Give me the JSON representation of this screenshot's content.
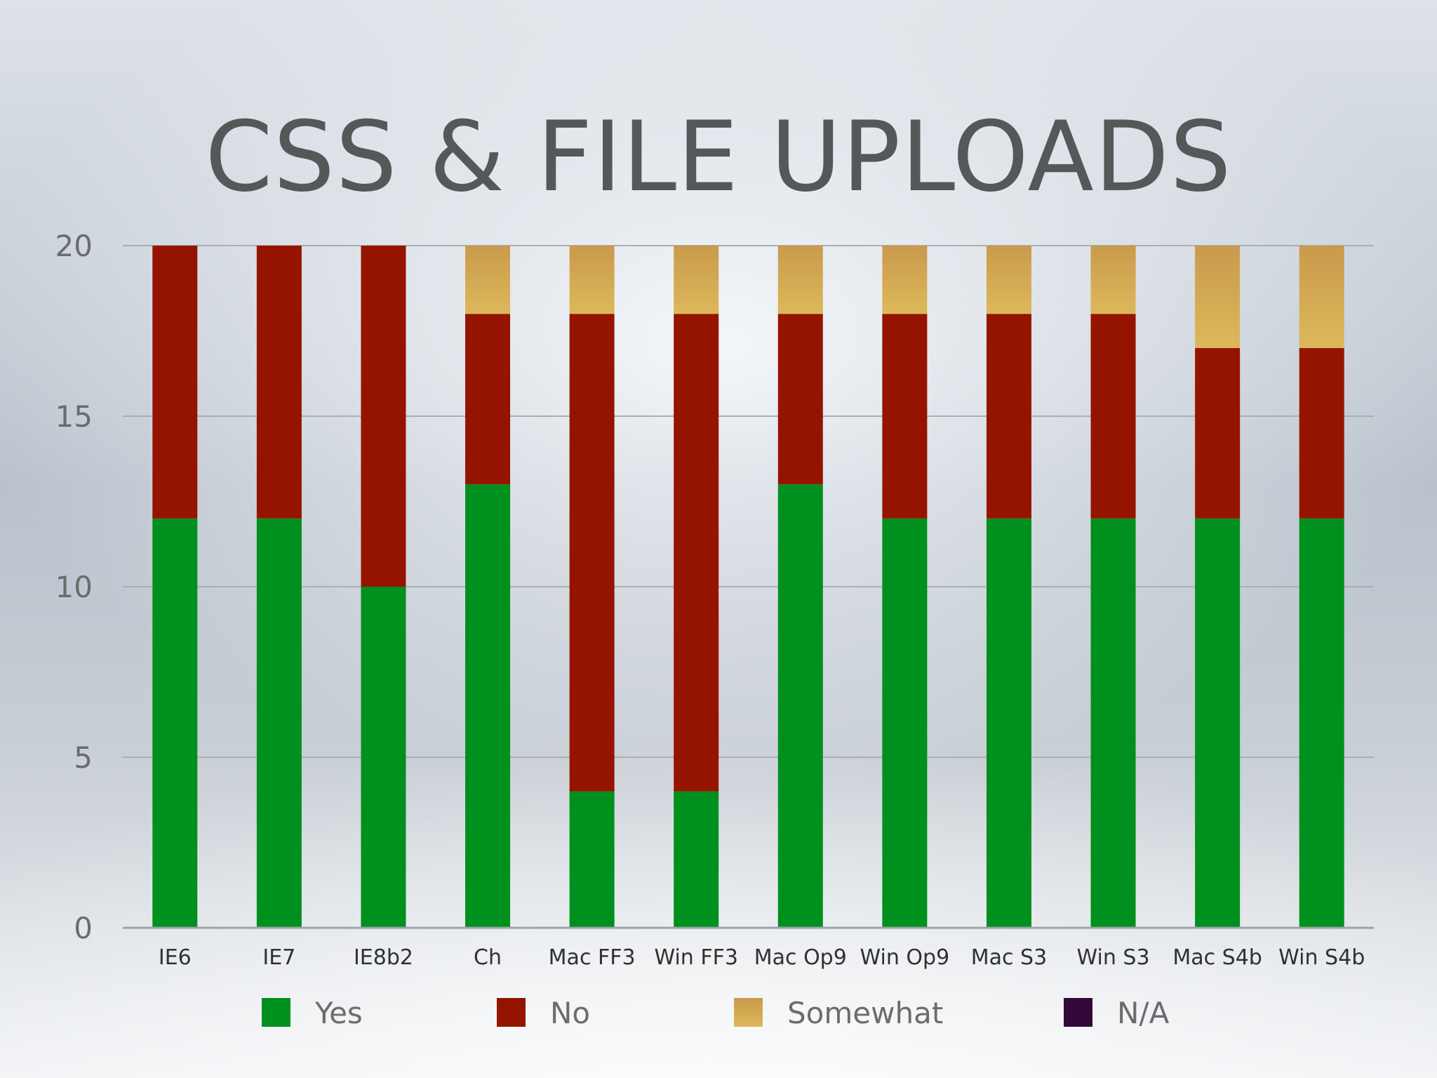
{
  "slide": {
    "title": "CSS & FILE UPLOADS"
  },
  "chart_data": {
    "type": "bar",
    "stacked": true,
    "title": "CSS & FILE UPLOADS",
    "xlabel": "",
    "ylabel": "",
    "ylim": [
      0,
      20
    ],
    "yticks": [
      0,
      5,
      10,
      15,
      20
    ],
    "grid": true,
    "legend_position": "bottom",
    "categories": [
      "IE6",
      "IE7",
      "IE8b2",
      "Ch",
      "Mac FF3",
      "Win FF3",
      "Mac Op9",
      "Win Op9",
      "Mac S3",
      "Win S3",
      "Mac S4b",
      "Win S4b"
    ],
    "series": [
      {
        "name": "Yes",
        "color": "#00901d",
        "values": [
          12,
          12,
          10,
          13,
          4,
          4,
          13,
          12,
          12,
          12,
          12,
          12
        ]
      },
      {
        "name": "No",
        "color": "#951400",
        "values": [
          8,
          8,
          10,
          5,
          14,
          14,
          5,
          6,
          6,
          6,
          5,
          5
        ]
      },
      {
        "name": "Somewhat",
        "color": "#d2a84f",
        "values": [
          0,
          0,
          0,
          2,
          2,
          2,
          2,
          2,
          2,
          2,
          3,
          3
        ]
      },
      {
        "name": "N/A",
        "color": "#33093a",
        "values": [
          0,
          0,
          0,
          0,
          0,
          0,
          0,
          0,
          0,
          0,
          0,
          0
        ]
      }
    ]
  }
}
